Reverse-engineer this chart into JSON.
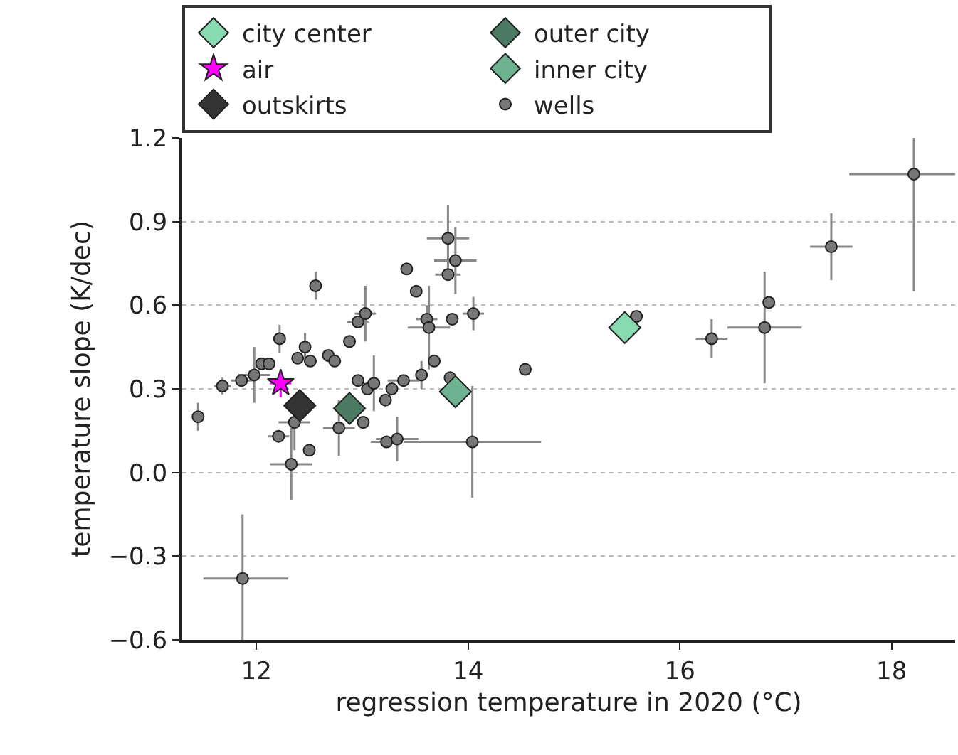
{
  "chart_data": {
    "type": "scatter",
    "xlabel": "regression temperature in 2020 (°C)",
    "ylabel": "temperature slope (K/dec)",
    "xlim": [
      11.3,
      18.6
    ],
    "xticks": [
      12,
      14,
      16,
      18
    ],
    "ylim": [
      -0.6,
      1.2
    ],
    "yticks": [
      {
        "value": -0.6,
        "label": "−0.6"
      },
      {
        "value": -0.3,
        "label": "−0.3"
      },
      {
        "value": 0,
        "label": "0.0"
      },
      {
        "value": 0.3,
        "label": "0.3"
      },
      {
        "value": 0.6,
        "label": "0.6"
      },
      {
        "value": 0.9,
        "label": "0.9"
      },
      {
        "value": 1.2,
        "label": "1.2"
      }
    ],
    "grid": "y",
    "legend": "top",
    "series": [
      {
        "name": "wells",
        "color": "#777777",
        "marker": "circle",
        "x": [
          11.45,
          11.68,
          11.86,
          11.98,
          12.05,
          12.12,
          12.22,
          12.36,
          12.21,
          12.33,
          12.5,
          12.39,
          12.46,
          12.51,
          12.56,
          12.68,
          12.74,
          12.88,
          12.96,
          13.03,
          12.96,
          13.05,
          13.11,
          12.78,
          13.01,
          13.22,
          13.28,
          13.23,
          13.33,
          13.39,
          13.56,
          13.68,
          13.42,
          13.51,
          13.61,
          13.63,
          13.81,
          13.88,
          13.81,
          13.85,
          14.05,
          13.83,
          14.04,
          14.54,
          15.59,
          16.3,
          16.84,
          16.8,
          17.43,
          18.21,
          11.87
        ],
        "values": [
          0.2,
          0.31,
          0.33,
          0.35,
          0.39,
          0.39,
          0.48,
          0.18,
          0.13,
          0.03,
          0.08,
          0.41,
          0.45,
          0.4,
          0.67,
          0.42,
          0.4,
          0.47,
          0.54,
          0.57,
          0.33,
          0.3,
          0.32,
          0.16,
          0.18,
          0.26,
          0.3,
          0.11,
          0.12,
          0.33,
          0.35,
          0.4,
          0.73,
          0.65,
          0.55,
          0.52,
          0.84,
          0.76,
          0.71,
          0.55,
          0.57,
          0.34,
          0.11,
          0.37,
          0.56,
          0.48,
          0.61,
          0.52,
          0.81,
          1.07,
          -0.38
        ],
        "errors": [
          0.05,
          0.03,
          null,
          0.1,
          null,
          null,
          0.05,
          0.1,
          null,
          0.13,
          null,
          null,
          0.05,
          null,
          0.05,
          null,
          null,
          null,
          null,
          0.1,
          null,
          null,
          0.1,
          0.1,
          null,
          null,
          null,
          null,
          0.08,
          null,
          0.05,
          null,
          null,
          null,
          0.05,
          0.15,
          0.12,
          0.12,
          null,
          null,
          0.06,
          null,
          0.2,
          null,
          null,
          0.07,
          null,
          0.2,
          0.12,
          [
            0.65,
            1.2
          ],
          [
            -0.6,
            -0.15
          ]
        ],
        "xerrors": [
          null,
          0.08,
          0.1,
          0.15,
          null,
          null,
          null,
          0.15,
          0.1,
          0.2,
          null,
          null,
          null,
          null,
          null,
          null,
          null,
          0.05,
          0.1,
          0.1,
          null,
          null,
          null,
          0.15,
          null,
          null,
          null,
          0.15,
          0.2,
          0.15,
          null,
          null,
          null,
          null,
          0.1,
          0.2,
          0.2,
          0.2,
          0.12,
          null,
          0.1,
          null,
          0.65,
          null,
          null,
          0.15,
          null,
          0.35,
          0.2,
          [
            17.6,
            18.6
          ],
          [
            11.5,
            12.3
          ]
        ]
      },
      {
        "name": "city center",
        "color": "#88dbb0",
        "marker": "diamond",
        "x": [
          15.48
        ],
        "values": [
          0.52
        ]
      },
      {
        "name": "inner city",
        "color": "#6db390",
        "marker": "diamond",
        "x": [
          13.88
        ],
        "values": [
          0.29
        ]
      },
      {
        "name": "outer city",
        "color": "#4d7a63",
        "marker": "diamond",
        "x": [
          12.88
        ],
        "values": [
          0.23
        ]
      },
      {
        "name": "outskirts",
        "color": "#333333",
        "marker": "diamond",
        "x": [
          12.41
        ],
        "values": [
          0.24
        ]
      },
      {
        "name": "air",
        "color": "#ff00ff",
        "marker": "star",
        "x": [
          12.23
        ],
        "values": [
          0.32
        ],
        "errors": [
          0.05
        ],
        "xerrors": [
          0.1
        ]
      }
    ]
  }
}
